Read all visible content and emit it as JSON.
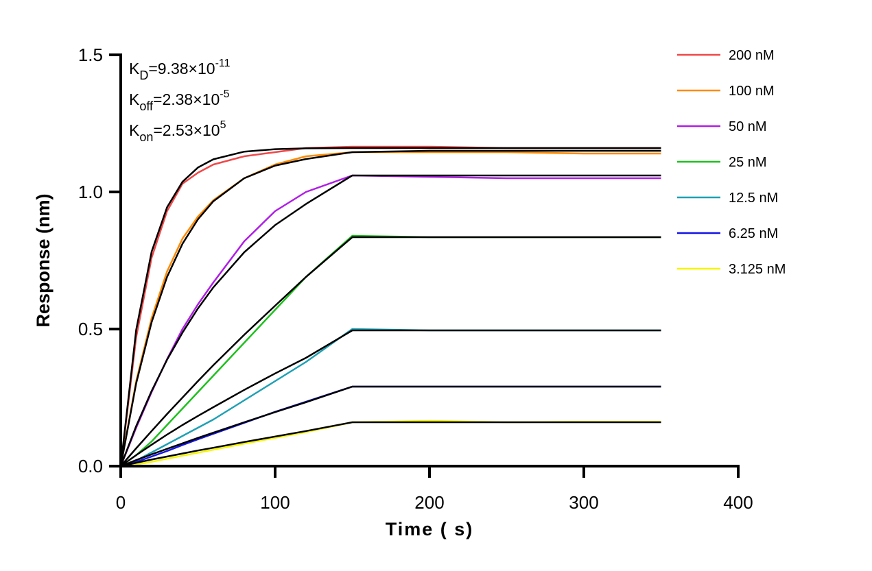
{
  "chart_data": {
    "type": "line",
    "xlabel": "Time ( s)",
    "ylabel": "Response (nm)",
    "xlim": [
      0,
      400
    ],
    "ylim": [
      0,
      1.5
    ],
    "xticks": [
      "0",
      "100",
      "200",
      "300",
      "400"
    ],
    "yticks": [
      "0.0",
      "0.5",
      "1.0",
      "1.5"
    ],
    "grid": false,
    "legend_position": "top-right",
    "annotations": [
      {
        "main": "K",
        "sub": "D",
        "value": "=9.38×10",
        "exp": "-11"
      },
      {
        "main": "K",
        "sub": "off",
        "value": "=2.38×10",
        "exp": "-5"
      },
      {
        "main": "K",
        "sub": "on",
        "value": "=2.53×10",
        "exp": "5"
      }
    ],
    "fit_color": "#000000",
    "x": [
      0,
      10,
      20,
      30,
      40,
      50,
      60,
      80,
      100,
      120,
      150,
      200,
      250,
      300,
      350
    ],
    "series": [
      {
        "name": "200 nM",
        "color": "#f04848",
        "values": [
          0,
          0.47,
          0.76,
          0.93,
          1.03,
          1.07,
          1.1,
          1.13,
          1.145,
          1.16,
          1.165,
          1.165,
          1.16,
          1.16,
          1.16
        ],
        "fit": [
          0,
          0.497,
          0.782,
          0.944,
          1.037,
          1.089,
          1.119,
          1.147,
          1.156,
          1.159,
          1.16,
          1.16,
          1.16,
          1.16,
          1.16
        ]
      },
      {
        "name": "100 nM",
        "color": "#ff8a00",
        "values": [
          0,
          0.31,
          0.54,
          0.71,
          0.83,
          0.91,
          0.97,
          1.05,
          1.1,
          1.13,
          1.145,
          1.145,
          1.145,
          1.14,
          1.14
        ],
        "fit": [
          0,
          0.302,
          0.525,
          0.69,
          0.811,
          0.9,
          0.966,
          1.05,
          1.096,
          1.12,
          1.145,
          1.15,
          1.15,
          1.15,
          1.15
        ]
      },
      {
        "name": "50 nM",
        "color": "#b01ee6",
        "values": [
          0,
          0.14,
          0.27,
          0.39,
          0.5,
          0.59,
          0.67,
          0.82,
          0.93,
          1.0,
          1.06,
          1.055,
          1.05,
          1.05,
          1.05
        ],
        "fit": [
          0,
          0.146,
          0.274,
          0.388,
          0.487,
          0.575,
          0.652,
          0.78,
          0.879,
          0.956,
          1.06,
          1.06,
          1.06,
          1.06,
          1.06
        ]
      },
      {
        "name": "25 nM",
        "color": "#1ec01e",
        "values": [
          0,
          0.04,
          0.09,
          0.15,
          0.21,
          0.27,
          0.33,
          0.45,
          0.57,
          0.69,
          0.84,
          0.835,
          0.835,
          0.835,
          0.835
        ],
        "fit": [
          0,
          0.065,
          0.128,
          0.19,
          0.25,
          0.31,
          0.368,
          0.479,
          0.585,
          0.69,
          0.835,
          0.835,
          0.835,
          0.835,
          0.835
        ]
      },
      {
        "name": "12.5 nM",
        "color": "#1ea0b4",
        "values": [
          0,
          0.02,
          0.05,
          0.08,
          0.11,
          0.14,
          0.17,
          0.24,
          0.31,
          0.38,
          0.5,
          0.495,
          0.495,
          0.495,
          0.495
        ],
        "fit": [
          0,
          0.04,
          0.078,
          0.115,
          0.15,
          0.183,
          0.215,
          0.278,
          0.338,
          0.395,
          0.495,
          0.495,
          0.495,
          0.495,
          0.495
        ]
      },
      {
        "name": "6.25 nM",
        "color": "#1414e6",
        "values": [
          0,
          0.015,
          0.035,
          0.055,
          0.077,
          0.098,
          0.118,
          0.158,
          0.198,
          0.235,
          0.29,
          0.29,
          0.29,
          0.29,
          0.29
        ],
        "fit": [
          0,
          0.022,
          0.043,
          0.063,
          0.083,
          0.103,
          0.122,
          0.16,
          0.197,
          0.233,
          0.29,
          0.29,
          0.29,
          0.29,
          0.29
        ]
      },
      {
        "name": "3.125 nM",
        "color": "#f5f500",
        "values": [
          0,
          0.006,
          0.016,
          0.027,
          0.038,
          0.049,
          0.06,
          0.082,
          0.103,
          0.124,
          0.16,
          0.165,
          0.16,
          0.162,
          0.162
        ],
        "fit": [
          0,
          0.012,
          0.024,
          0.035,
          0.046,
          0.057,
          0.067,
          0.088,
          0.108,
          0.128,
          0.16,
          0.16,
          0.16,
          0.16,
          0.16
        ]
      }
    ]
  }
}
